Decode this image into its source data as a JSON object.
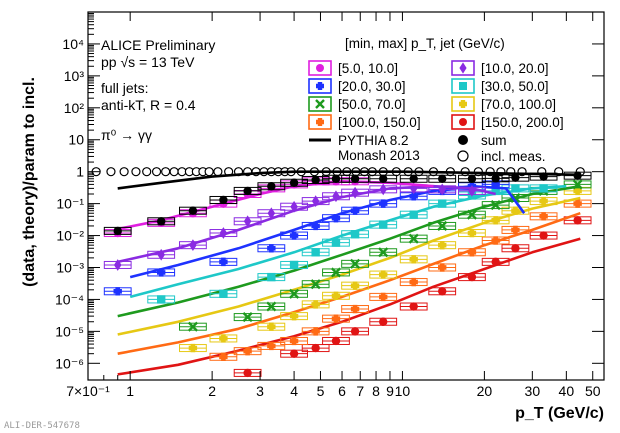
{
  "chart_data": {
    "type": "scatter",
    "xlabel": "p_T (GeV/c)",
    "ylabel": "(data, theory)/param to incl.",
    "xlim": [
      0.7,
      55
    ],
    "ylim": [
      3e-07,
      100000.0
    ],
    "xscale": "log",
    "yscale": "log",
    "x_ticklabels": [
      "7×10⁻¹",
      "1",
      "2",
      "3",
      "4",
      "5",
      "6",
      "7",
      "8",
      "9",
      "10",
      "20",
      "30",
      "40",
      "50"
    ],
    "y_ticklabels": [
      "10⁻⁶",
      "10⁻⁵",
      "10⁻⁴",
      "10⁻³",
      "10⁻²",
      "10⁻¹",
      "1",
      "10",
      "10²",
      "10³",
      "10⁴"
    ],
    "annotations": {
      "experiment": "ALICE Preliminary",
      "energy": "pp √s = 13 TeV",
      "jets_1": "full jets:",
      "jets_2": "anti-kT, R = 0.4",
      "decay": "π⁰ → γγ"
    },
    "legend_title": "[min, max] p_T, jet (GeV/c)",
    "legend_placement": "top-right",
    "grid": false,
    "series": [
      {
        "name": "[5.0, 10.0]",
        "color": "#e01ee0",
        "marker": "circle",
        "x": [
          0.9,
          1.3,
          1.7,
          2.2,
          2.7,
          3.3,
          4.0,
          4.8,
          5.7,
          6.7
        ],
        "y": [
          0.012,
          0.025,
          0.05,
          0.1,
          0.2,
          0.3,
          0.4,
          0.5,
          0.5,
          0.5
        ],
        "model_x": [
          0.9,
          1.3,
          2.0,
          3.0,
          4.0,
          6.0,
          9.0,
          13.0
        ],
        "model_y": [
          0.016,
          0.03,
          0.08,
          0.2,
          0.35,
          0.5,
          0.45,
          0.35
        ]
      },
      {
        "name": "[10.0, 20.0]",
        "color": "#8a2be2",
        "marker": "diamond",
        "x": [
          0.9,
          1.3,
          1.7,
          2.2,
          2.7,
          3.3,
          4.0,
          4.8,
          5.7,
          6.7,
          8.5,
          11,
          14,
          18
        ],
        "y": [
          0.0012,
          0.0025,
          0.005,
          0.012,
          0.028,
          0.05,
          0.08,
          0.12,
          0.17,
          0.22,
          0.28,
          0.3,
          0.28,
          0.25
        ],
        "model_x": [
          0.9,
          1.5,
          2.5,
          4.0,
          6.0,
          9.0,
          13.0,
          18.0,
          22.0
        ],
        "model_y": [
          0.0015,
          0.004,
          0.015,
          0.06,
          0.16,
          0.3,
          0.35,
          0.3,
          0.2
        ]
      },
      {
        "name": "[20.0, 30.0]",
        "color": "#1e32ff",
        "marker": "cross",
        "x": [
          0.9,
          1.3,
          2.2,
          3.3,
          4.0,
          4.8,
          5.7,
          6.7,
          8.5,
          11,
          14,
          18,
          22
        ],
        "y": [
          0.00018,
          0.0007,
          0.0015,
          0.004,
          0.01,
          0.02,
          0.035,
          0.06,
          0.1,
          0.17,
          0.25,
          0.35,
          0.4
        ],
        "model_x": [
          1.0,
          1.5,
          2.5,
          4.0,
          6.0,
          9.0,
          13.0,
          18.0,
          24.0,
          28.0
        ],
        "model_y": [
          0.0005,
          0.0012,
          0.004,
          0.015,
          0.05,
          0.13,
          0.25,
          0.35,
          0.3,
          0.05
        ]
      },
      {
        "name": "[30.0, 50.0]",
        "color": "#1ec8c8",
        "marker": "square",
        "x": [
          1.3,
          2.2,
          3.3,
          4.0,
          4.8,
          5.7,
          6.7,
          8.5,
          11,
          14,
          18,
          22,
          26,
          33
        ],
        "y": [
          0.0001,
          0.00015,
          0.0005,
          0.0012,
          0.003,
          0.006,
          0.011,
          0.022,
          0.045,
          0.1,
          0.18,
          0.25,
          0.3,
          0.3
        ],
        "model_x": [
          1.0,
          1.5,
          2.5,
          4.0,
          6.0,
          9.0,
          13.0,
          20.0,
          30.0,
          40.0
        ],
        "model_y": [
          0.00012,
          0.0003,
          0.0009,
          0.003,
          0.01,
          0.03,
          0.08,
          0.18,
          0.3,
          0.35
        ]
      },
      {
        "name": "[50.0, 70.0]",
        "color": "#1e9a1e",
        "marker": "xcross",
        "x": [
          1.7,
          2.7,
          3.3,
          4.0,
          4.8,
          5.7,
          6.7,
          8.5,
          11,
          14,
          18,
          22,
          26,
          33,
          44
        ],
        "y": [
          1.4e-05,
          2.8e-05,
          6e-05,
          0.00015,
          0.0003,
          0.0007,
          0.0013,
          0.003,
          0.008,
          0.02,
          0.045,
          0.09,
          0.15,
          0.25,
          0.4
        ],
        "model_x": [
          0.9,
          1.5,
          2.5,
          4.0,
          6.0,
          9.0,
          13.0,
          20.0,
          30.0,
          45.0
        ],
        "model_y": [
          3e-05,
          8e-05,
          0.00025,
          0.0008,
          0.0025,
          0.008,
          0.025,
          0.08,
          0.2,
          0.35
        ]
      },
      {
        "name": "[70.0, 100.0]",
        "color": "#e6c814",
        "marker": "cross",
        "x": [
          1.7,
          2.2,
          3.3,
          4.0,
          4.8,
          5.7,
          6.7,
          8.5,
          11,
          14,
          18,
          22,
          26,
          33,
          44
        ],
        "y": [
          3e-06,
          6e-06,
          1.4e-05,
          3e-05,
          7e-05,
          0.00013,
          0.00027,
          0.0006,
          0.0018,
          0.005,
          0.012,
          0.03,
          0.06,
          0.12,
          0.25
        ],
        "model_x": [
          0.9,
          1.5,
          2.5,
          4.0,
          6.0,
          9.0,
          13.0,
          20.0,
          30.0,
          45.0
        ],
        "model_y": [
          8e-06,
          2e-05,
          6e-05,
          0.0002,
          0.0006,
          0.002,
          0.007,
          0.025,
          0.07,
          0.15
        ]
      },
      {
        "name": "[100.0, 150.0]",
        "color": "#ff6a14",
        "marker": "cross",
        "x": [
          2.2,
          2.7,
          3.3,
          4.0,
          4.8,
          5.7,
          6.7,
          8.5,
          11,
          14,
          18,
          22,
          26,
          33,
          44
        ],
        "y": [
          1.6e-06,
          2.4e-06,
          3.5e-06,
          5e-06,
          1e-05,
          2.5e-05,
          5e-05,
          0.00012,
          0.00035,
          0.001,
          0.003,
          0.007,
          0.015,
          0.04,
          0.1
        ],
        "model_x": [
          0.9,
          1.5,
          2.5,
          4.0,
          6.0,
          9.0,
          13.0,
          20.0,
          30.0,
          45.0
        ],
        "model_y": [
          2e-06,
          4.5e-06,
          1.2e-05,
          4e-05,
          0.00012,
          0.0004,
          0.0013,
          0.005,
          0.015,
          0.05
        ]
      },
      {
        "name": "[150.0, 200.0]",
        "color": "#e01414",
        "marker": "circle",
        "x": [
          2.7,
          4.0,
          4.8,
          5.7,
          6.7,
          8.5,
          11,
          14,
          18,
          22,
          26,
          33,
          44
        ],
        "y": [
          5e-07,
          2e-06,
          3e-06,
          5e-06,
          1e-05,
          2e-05,
          6e-05,
          0.00018,
          0.0005,
          0.0015,
          0.004,
          0.01,
          0.03
        ],
        "model_x": [
          0.9,
          1.5,
          2.5,
          4.0,
          6.0,
          9.0,
          13.0,
          20.0,
          30.0,
          45.0
        ],
        "model_y": [
          4.5e-07,
          9e-07,
          2.5e-06,
          7e-06,
          2e-05,
          7e-05,
          0.00025,
          0.0009,
          0.003,
          0.008
        ]
      },
      {
        "name": "sum",
        "color": "#000000",
        "marker": "circle",
        "x": [
          0.9,
          1.3,
          1.7,
          2.2,
          2.7,
          3.3,
          4.0,
          4.8,
          5.7,
          6.7,
          8.5,
          11,
          14,
          18,
          22,
          26,
          33,
          44
        ],
        "y": [
          0.014,
          0.028,
          0.06,
          0.13,
          0.25,
          0.35,
          0.45,
          0.55,
          0.6,
          0.6,
          0.6,
          0.6,
          0.6,
          0.6,
          0.62,
          0.65,
          0.7,
          0.75
        ],
        "model_x": [
          0.9,
          1.3,
          2.0,
          3.0,
          4.0,
          5.0,
          7.0,
          10.0,
          15.0,
          20.0,
          30.0,
          45.0
        ],
        "model_y": [
          0.3,
          0.45,
          0.7,
          0.9,
          1.0,
          1.0,
          1.0,
          1.0,
          0.95,
          0.9,
          0.85,
          0.8
        ]
      },
      {
        "name": "incl. meas.",
        "color": "#000000",
        "marker": "open-circle",
        "x": [
          0.75,
          0.85,
          0.95,
          1.05,
          1.15,
          1.25,
          1.35,
          1.45,
          1.55,
          1.65,
          1.75,
          1.85,
          1.95,
          2.1,
          2.3,
          2.5,
          2.7,
          2.9,
          3.1,
          3.3,
          3.5,
          3.7,
          3.9,
          4.25,
          4.75,
          5.25,
          5.75,
          6.25,
          6.75,
          7.25,
          7.75,
          8.5,
          9.5,
          10.5,
          11.5,
          13,
          15,
          17,
          19,
          21,
          23,
          25,
          27.5,
          32.5,
          37.5,
          45
        ],
        "y": [
          1,
          1,
          1,
          1,
          1,
          1,
          1,
          1,
          1,
          1,
          1,
          1,
          1,
          1,
          1,
          1,
          1,
          1,
          1,
          1,
          1,
          1,
          1,
          1,
          1,
          1,
          1,
          1,
          1,
          1,
          1,
          1,
          1,
          1,
          1,
          1,
          1,
          1,
          1,
          1,
          1,
          1,
          1,
          1,
          1,
          1
        ]
      }
    ],
    "model_legend_1": "PYTHIA 8.2",
    "model_legend_2": "Monash 2013"
  },
  "watermark": "ALI-DER-547678"
}
